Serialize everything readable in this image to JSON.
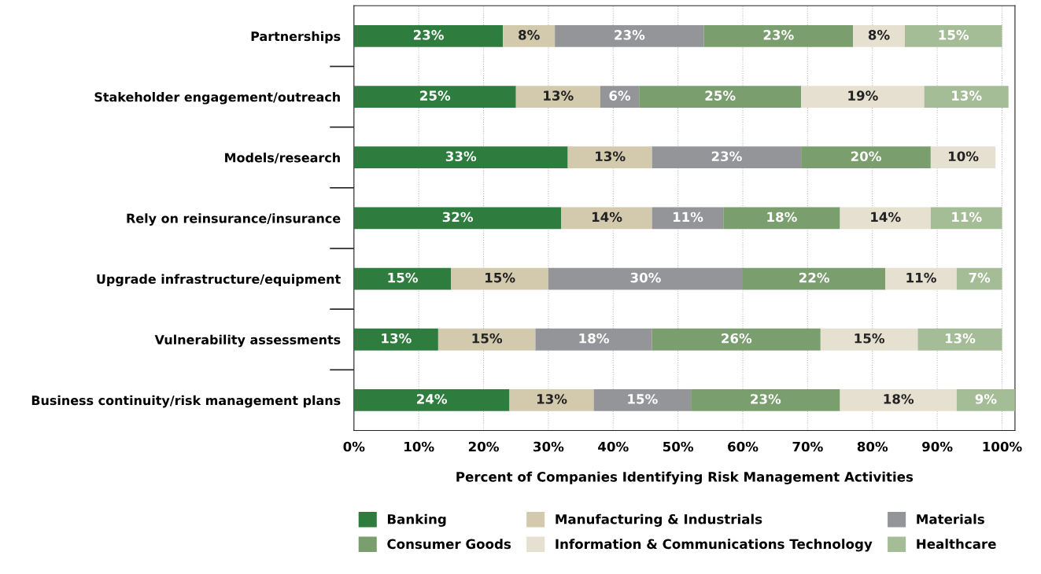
{
  "chart_data": {
    "type": "bar",
    "orientation": "horizontal",
    "stacked": true,
    "xlabel": "Percent of Companies Identifying Risk Management Activities",
    "categories": [
      "Partnerships",
      "Stakeholder engagement/outreach",
      "Models/research",
      "Rely on reinsurance/insurance",
      "Upgrade infrastructure/equipment",
      "Vulnerability assessments",
      "Business continuity/risk management plans"
    ],
    "series": [
      {
        "name": "Banking",
        "color": "#2e7d3e",
        "values": [
          23,
          25,
          33,
          32,
          15,
          13,
          24
        ],
        "value_labels": [
          "23%",
          "25%",
          "33%",
          "32%",
          "15%",
          "13%",
          "24%"
        ]
      },
      {
        "name": "Manufacturing & Industrials",
        "color": "#d3c9ad",
        "values": [
          8,
          13,
          13,
          14,
          15,
          15,
          13
        ],
        "value_labels": [
          "8%",
          "13%",
          "13%",
          "14%",
          "15%",
          "15%",
          "13%"
        ]
      },
      {
        "name": "Materials",
        "color": "#939598",
        "values": [
          23,
          6,
          23,
          11,
          30,
          18,
          15
        ],
        "value_labels": [
          "23%",
          "6%",
          "23%",
          "11%",
          "30%",
          "18%",
          "15%"
        ]
      },
      {
        "name": "Consumer Goods",
        "color": "#7a9e6e",
        "values": [
          23,
          25,
          20,
          18,
          22,
          26,
          23
        ],
        "value_labels": [
          "23%",
          "25%",
          "20%",
          "18%",
          "22%",
          "26%",
          "23%"
        ]
      },
      {
        "name": "Information & Communications Technology",
        "color": "#e6e0d0",
        "values": [
          8,
          19,
          10,
          14,
          11,
          15,
          18
        ],
        "value_labels": [
          "8%",
          "19%",
          "10%",
          "14%",
          "11%",
          "15%",
          "18%"
        ]
      },
      {
        "name": "Healthcare",
        "color": "#a5bd97",
        "values": [
          15,
          13,
          null,
          11,
          7,
          13,
          9
        ],
        "value_labels": [
          "15%",
          "13%",
          null,
          "11%",
          "7%",
          "13%",
          "9%"
        ]
      }
    ],
    "xlim": [
      0,
      102
    ],
    "xticks": [
      {
        "value": 0,
        "label": "0%"
      },
      {
        "value": 10,
        "label": "10%"
      },
      {
        "value": 20,
        "label": "20%"
      },
      {
        "value": 30,
        "label": "30%"
      },
      {
        "value": 40,
        "label": "40%"
      },
      {
        "value": 50,
        "label": "50%"
      },
      {
        "value": 60,
        "label": "60%"
      },
      {
        "value": 70,
        "label": "70%"
      },
      {
        "value": 80,
        "label": "80%"
      },
      {
        "value": 90,
        "label": "90%"
      },
      {
        "value": 100,
        "label": "100%"
      }
    ],
    "grid": "x",
    "legend": "bottom"
  }
}
